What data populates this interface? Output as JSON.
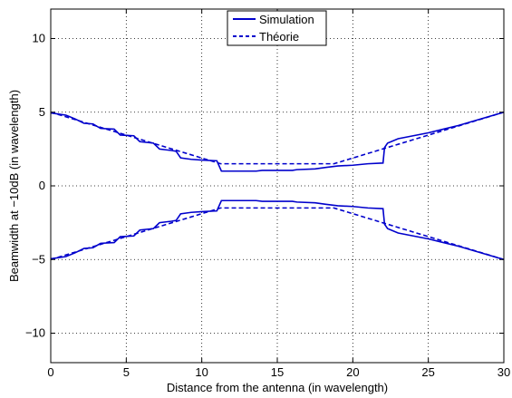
{
  "chart_data": {
    "type": "line",
    "xlabel": "Distance from the antenna (in wavelength)",
    "ylabel": "Beamwidth at −10dB (in wavelength)",
    "xlim": [
      0,
      30
    ],
    "ylim": [
      -12,
      12
    ],
    "xticks": [
      "0",
      "5",
      "10",
      "15",
      "20",
      "25",
      "30"
    ],
    "yticks": [
      "−10",
      "−5",
      "0",
      "5",
      "10"
    ],
    "grid": true,
    "legend_position": "top-center",
    "series": [
      {
        "name": "Simulation",
        "style": "solid",
        "color": "#0000cc",
        "branches": [
          [
            [
              0,
              4.95
            ],
            [
              1,
              4.8
            ],
            [
              1.6,
              4.55
            ],
            [
              2.2,
              4.25
            ],
            [
              2.8,
              4.2
            ],
            [
              3.3,
              3.9
            ],
            [
              4.2,
              3.85
            ],
            [
              4.6,
              3.45
            ],
            [
              5.5,
              3.4
            ],
            [
              5.9,
              3.0
            ],
            [
              6.8,
              2.9
            ],
            [
              7.2,
              2.5
            ],
            [
              8,
              2.4
            ],
            [
              8.3,
              2.35
            ],
            [
              8.6,
              1.9
            ],
            [
              9.3,
              1.8
            ],
            [
              10,
              1.75
            ],
            [
              11,
              1.7
            ],
            [
              11.3,
              1.0
            ],
            [
              13.6,
              1.0
            ],
            [
              14,
              1.05
            ],
            [
              16,
              1.05
            ],
            [
              16.3,
              1.1
            ],
            [
              17.5,
              1.15
            ],
            [
              18.2,
              1.25
            ],
            [
              19,
              1.35
            ],
            [
              20,
              1.4
            ],
            [
              21,
              1.5
            ],
            [
              22,
              1.55
            ],
            [
              22.1,
              2.6
            ],
            [
              22.3,
              2.9
            ],
            [
              23,
              3.2
            ],
            [
              24,
              3.4
            ],
            [
              25,
              3.6
            ],
            [
              26,
              3.85
            ],
            [
              27,
              4.1
            ],
            [
              28,
              4.4
            ],
            [
              29,
              4.7
            ],
            [
              30,
              5.0
            ]
          ],
          [
            [
              0,
              -4.95
            ],
            [
              1,
              -4.8
            ],
            [
              1.6,
              -4.55
            ],
            [
              2.2,
              -4.25
            ],
            [
              2.8,
              -4.2
            ],
            [
              3.3,
              -3.9
            ],
            [
              4.2,
              -3.85
            ],
            [
              4.6,
              -3.45
            ],
            [
              5.5,
              -3.4
            ],
            [
              5.9,
              -3.0
            ],
            [
              6.8,
              -2.9
            ],
            [
              7.2,
              -2.5
            ],
            [
              8,
              -2.4
            ],
            [
              8.3,
              -2.35
            ],
            [
              8.6,
              -1.9
            ],
            [
              9.3,
              -1.8
            ],
            [
              10,
              -1.75
            ],
            [
              11,
              -1.7
            ],
            [
              11.3,
              -1.0
            ],
            [
              13.6,
              -1.0
            ],
            [
              14,
              -1.05
            ],
            [
              16,
              -1.05
            ],
            [
              16.3,
              -1.1
            ],
            [
              17.5,
              -1.15
            ],
            [
              18.2,
              -1.25
            ],
            [
              19,
              -1.35
            ],
            [
              20,
              -1.4
            ],
            [
              21,
              -1.5
            ],
            [
              22,
              -1.55
            ],
            [
              22.1,
              -2.6
            ],
            [
              22.3,
              -2.9
            ],
            [
              23,
              -3.2
            ],
            [
              24,
              -3.4
            ],
            [
              25,
              -3.6
            ],
            [
              26,
              -3.85
            ],
            [
              27,
              -4.1
            ],
            [
              28,
              -4.4
            ],
            [
              29,
              -4.7
            ],
            [
              30,
              -5.0
            ]
          ]
        ]
      },
      {
        "name": "Théorie",
        "style": "dashed",
        "color": "#0000cc",
        "branches": [
          [
            [
              0,
              5.0
            ],
            [
              11.25,
              1.5
            ],
            [
              18.75,
              1.5
            ],
            [
              30,
              5.0
            ]
          ],
          [
            [
              0,
              -5.0
            ],
            [
              11.25,
              -1.5
            ],
            [
              18.75,
              -1.5
            ],
            [
              30,
              -5.0
            ]
          ]
        ]
      }
    ]
  }
}
